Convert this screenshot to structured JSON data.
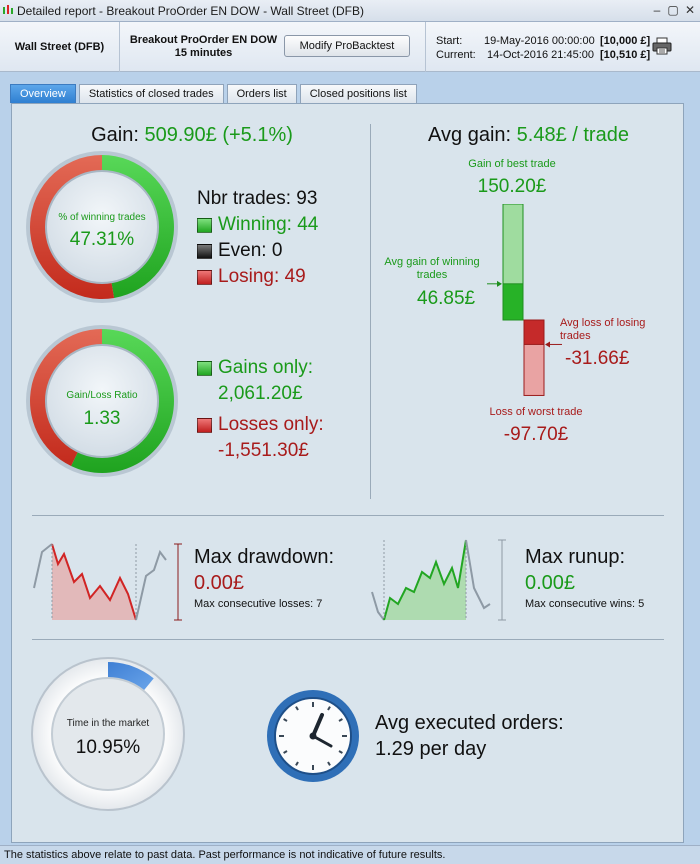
{
  "window": {
    "title": "Detailed report - Breakout ProOrder EN DOW - Wall Street (DFB)"
  },
  "header": {
    "instrument": "Wall Street (DFB)",
    "strategy_name": "Breakout ProOrder EN DOW",
    "timeframe": "15 minutes",
    "modify_label": "Modify ProBacktest",
    "start_label": "Start:",
    "start_date": "19-May-2016 00:00:00",
    "start_capital": "[10,000 £]",
    "current_label": "Current:",
    "current_date": "14-Oct-2016 21:45:00",
    "current_capital": "[10,510 £]"
  },
  "tabs": [
    {
      "label": "Overview",
      "active": true
    },
    {
      "label": "Statistics of closed trades",
      "active": false
    },
    {
      "label": "Orders list",
      "active": false
    },
    {
      "label": "Closed positions list",
      "active": false
    }
  ],
  "gain": {
    "label": "Gain:",
    "value": "509.90£ (+5.1%)"
  },
  "winning_donut": {
    "label": "% of winning trades",
    "value": "47.31%",
    "fraction": 0.4731
  },
  "trades": {
    "nbr_label": "Nbr trades:",
    "nbr": "93",
    "winning_label": "Winning:",
    "winning": "44",
    "even_label": "Even:",
    "even": "0",
    "losing_label": "Losing:",
    "losing": "49"
  },
  "ratio_donut": {
    "label": "Gain/Loss Ratio",
    "value": "1.33",
    "fraction": 0.5706
  },
  "gains_losses": {
    "gains_label": "Gains only:",
    "gains": "2,061.20£",
    "losses_label": "Losses only:",
    "losses": "-1,551.30£"
  },
  "avg_gain": {
    "label": "Avg gain:",
    "value": "5.48£ / trade"
  },
  "trade_bars": {
    "best_label": "Gain of best trade",
    "best": "150.20£",
    "avg_win_label": "Avg gain of winning trades",
    "avg_win": "46.85£",
    "avg_loss_label": "Avg loss of losing trades",
    "avg_loss": "-31.66£",
    "worst_label": "Loss of worst trade",
    "worst": "-97.70£",
    "best_value": 150.2,
    "avg_win_value": 46.85,
    "avg_loss_value": -31.66,
    "worst_value": -97.7
  },
  "drawdown": {
    "label": "Max drawdown:",
    "value": "0.00£",
    "sub": "Max consecutive losses: 7"
  },
  "runup": {
    "label": "Max runup:",
    "value": "0.00£",
    "sub": "Max consecutive wins: 5"
  },
  "market_time": {
    "label": "Time in the market",
    "value": "10.95%",
    "fraction": 0.1095
  },
  "orders": {
    "label": "Avg executed orders:",
    "value": "1.29 per day"
  },
  "footer": {
    "text": "The statistics above relate to past data. Past performance is not indicative of future results."
  },
  "colors": {
    "green": "#1a9a1a",
    "red": "#a81b1b",
    "accent_blue": "#2e7fd1"
  },
  "icons": [
    "app-icon",
    "minimize-icon",
    "maximize-icon",
    "close-icon",
    "print-icon",
    "clock-icon"
  ]
}
